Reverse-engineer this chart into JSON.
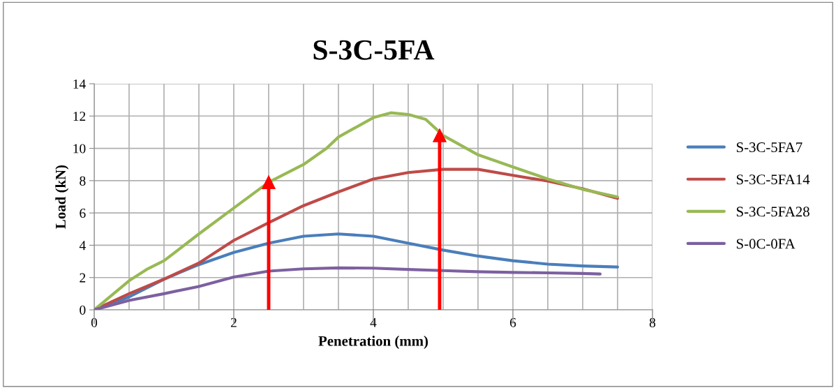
{
  "chart_data": {
    "type": "line",
    "title": "S-3C-5FA",
    "xlabel": "Penetration (mm)",
    "ylabel": "Load (kN)",
    "xlim": [
      0,
      8
    ],
    "xticks": [
      0,
      {
        "value": 0.5,
        "label": null
      },
      {
        "value": 1,
        "label": null
      },
      {
        "value": 1.5,
        "label": null
      },
      2,
      {
        "value": 2.5,
        "label": null
      },
      {
        "value": 3,
        "label": null
      },
      {
        "value": 3.5,
        "label": null
      },
      4,
      {
        "value": 4.5,
        "label": null
      },
      {
        "value": 5,
        "label": null
      },
      {
        "value": 5.5,
        "label": null
      },
      6,
      {
        "value": 6.5,
        "label": null
      },
      {
        "value": 7,
        "label": null
      },
      {
        "value": 7.5,
        "label": null
      },
      8
    ],
    "ylim": [
      0,
      14
    ],
    "yticks": [
      0,
      2,
      4,
      6,
      8,
      10,
      12,
      14
    ],
    "grid": true,
    "legend": "right",
    "line_style": "solid",
    "marker": "none",
    "series": [
      {
        "name": "S-3C-5FA7",
        "color": "#4a7ebb",
        "x": [
          0,
          0.5,
          1,
          1.5,
          2,
          2.5,
          3,
          3.5,
          4,
          4.5,
          5,
          5.5,
          6,
          6.5,
          7,
          7.5
        ],
        "values": [
          0,
          0.8,
          1.9,
          2.8,
          3.55,
          4.13,
          4.56,
          4.7,
          4.56,
          4.13,
          3.7,
          3.33,
          3.04,
          2.83,
          2.72,
          2.65
        ]
      },
      {
        "name": "S-3C-5FA14",
        "color": "#be4b48",
        "x": [
          0,
          0.5,
          1,
          1.5,
          2,
          2.5,
          3,
          3.5,
          4,
          4.5,
          5,
          5.5,
          6,
          6.5,
          7,
          7.5
        ],
        "values": [
          0,
          1.0,
          1.9,
          2.9,
          4.3,
          5.4,
          6.45,
          7.3,
          8.1,
          8.5,
          8.7,
          8.7,
          8.33,
          7.97,
          7.5,
          6.9
        ]
      },
      {
        "name": "S-3C-5FA28",
        "color": "#98b954",
        "x": [
          0,
          0.5,
          0.75,
          1,
          1.5,
          2,
          2.5,
          3,
          3.33,
          3.5,
          4,
          4.25,
          4.5,
          4.75,
          5,
          5.5,
          6,
          6.5,
          7,
          7.5
        ],
        "values": [
          0,
          1.8,
          2.5,
          3.04,
          4.7,
          6.3,
          7.9,
          9.0,
          10.0,
          10.7,
          11.9,
          12.2,
          12.1,
          11.8,
          10.8,
          9.6,
          8.85,
          8.1,
          7.46,
          6.99
        ]
      },
      {
        "name": "S-0C-0FA",
        "color": "#7d60a0",
        "x": [
          0,
          0.5,
          1,
          1.5,
          2,
          2.5,
          3,
          3.5,
          4,
          4.5,
          5,
          5.5,
          6,
          6.5,
          7,
          7.25
        ],
        "values": [
          0,
          0.58,
          1.0,
          1.45,
          2.03,
          2.4,
          2.54,
          2.6,
          2.58,
          2.5,
          2.43,
          2.36,
          2.32,
          2.29,
          2.25,
          2.22
        ]
      },
      {
        "color": "#ff0000",
        "marker": "triangle",
        "x": [
          2.5,
          2.5
        ],
        "values": [
          0,
          7.9
        ]
      },
      {
        "color": "#ff0000",
        "marker": "triangle",
        "x": [
          4.95,
          4.95
        ],
        "values": [
          0,
          10.8
        ]
      }
    ]
  }
}
